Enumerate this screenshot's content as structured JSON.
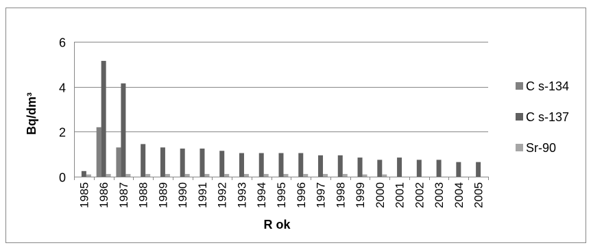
{
  "chart_data": {
    "type": "bar",
    "title": "",
    "xlabel": "R ok",
    "ylabel": "Bq/dm³",
    "ylim": [
      0,
      6
    ],
    "yticks": [
      0,
      2,
      4,
      6
    ],
    "grid": true,
    "legend_position": "right",
    "categories": [
      "1985",
      "1986",
      "1987",
      "1988",
      "1989",
      "1990",
      "1991",
      "1992",
      "1993",
      "1994",
      "1995",
      "1996",
      "1997",
      "1998",
      "1999",
      "2000",
      "2001",
      "2002",
      "2003",
      "2004",
      "2005"
    ],
    "series": [
      {
        "name": "C s-134",
        "color": "#808080",
        "values": [
          0,
          2.2,
          1.3,
          0,
          0,
          0,
          0,
          0,
          0,
          0,
          0,
          0,
          0,
          0,
          0,
          0,
          0,
          0,
          0,
          0,
          0
        ]
      },
      {
        "name": "C s-137",
        "color": "#606060",
        "values": [
          0.25,
          5.15,
          4.15,
          1.45,
          1.3,
          1.25,
          1.25,
          1.15,
          1.05,
          1.05,
          1.05,
          1.05,
          0.95,
          0.95,
          0.85,
          0.75,
          0.85,
          0.75,
          0.75,
          0.65,
          0.65
        ]
      },
      {
        "name": "Sr-90",
        "color": "#a6a6a6",
        "values": [
          0.1,
          0.12,
          0.12,
          0.12,
          0.12,
          0.12,
          0.12,
          0.12,
          0.12,
          0.12,
          0.12,
          0.12,
          0.12,
          0.12,
          0.1,
          0.1,
          0,
          0,
          0,
          0,
          0
        ]
      }
    ]
  }
}
